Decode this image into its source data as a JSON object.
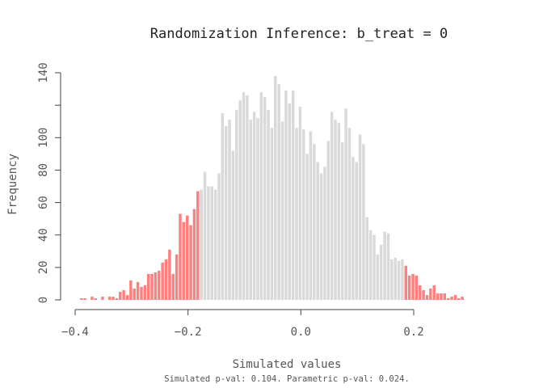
{
  "chart_data": {
    "type": "bar",
    "title": "Randomization Inference: b_treat = 0",
    "xlabel": "Simulated values",
    "ylabel": "Frequency",
    "subtitle": "Simulated p-val: 0.104. Parametric p-val: 0.024.",
    "xlim": [
      -0.4,
      0.35
    ],
    "ylim": [
      0,
      140
    ],
    "x_ticks": [
      {
        "value": -0.4,
        "label": "−0.4"
      },
      {
        "value": -0.2,
        "label": "−0.2"
      },
      {
        "value": 0.0,
        "label": "0.0"
      },
      {
        "value": 0.2,
        "label": "0.2"
      }
    ],
    "y_ticks": [
      {
        "value": 0,
        "label": "0"
      },
      {
        "value": 20,
        "label": "20"
      },
      {
        "value": 40,
        "label": "40"
      },
      {
        "value": 60,
        "label": "60"
      },
      {
        "value": 80,
        "label": "80"
      },
      {
        "value": 100,
        "label": "100"
      },
      {
        "value": 120,
        "label": ""
      },
      {
        "value": 140,
        "label": "140"
      }
    ],
    "bin_width": 0.00625,
    "bins_start": -0.392,
    "values": [
      1,
      1,
      0,
      2,
      1,
      0,
      2,
      0,
      2,
      2,
      1,
      5,
      6,
      3,
      12,
      7,
      11,
      8,
      9,
      16,
      16,
      17,
      18,
      23,
      25,
      31,
      16,
      28,
      53,
      48,
      52,
      46,
      56,
      67,
      68,
      79,
      70,
      70,
      68,
      78,
      115,
      107,
      111,
      92,
      117,
      123,
      128,
      126,
      111,
      116,
      112,
      128,
      125,
      117,
      106,
      138,
      133,
      110,
      129,
      121,
      129,
      106,
      119,
      105,
      90,
      104,
      96,
      85,
      78,
      82,
      98,
      116,
      111,
      109,
      97,
      118,
      106,
      88,
      85,
      102,
      96,
      51,
      43,
      40,
      28,
      34,
      42,
      41,
      25,
      26,
      24,
      25,
      21,
      15,
      16,
      15,
      9,
      6,
      3,
      7,
      9,
      4,
      4,
      4,
      1,
      2,
      3,
      1,
      2
    ],
    "highlight_below": -0.18,
    "highlight_above": 0.18,
    "colors": {
      "bar_default": "#d9d9d9",
      "bar_highlight": "#ff7f7f",
      "axis": "#444444",
      "text": "#555555"
    }
  }
}
